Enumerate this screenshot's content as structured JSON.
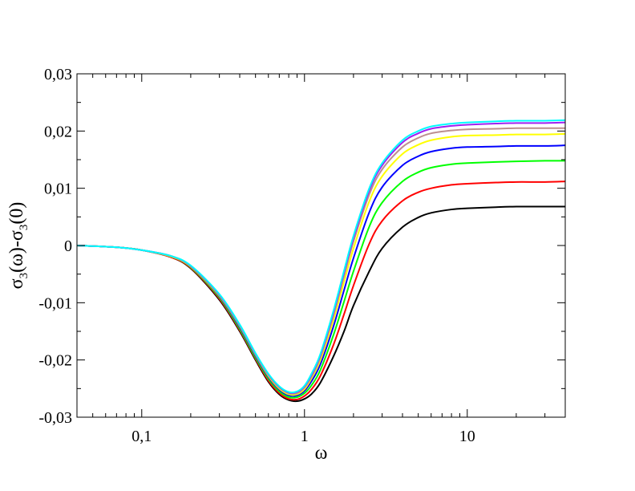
{
  "chart_data": {
    "type": "line",
    "xscale": "log",
    "xlim": [
      0.04,
      40
    ],
    "ylim": [
      -0.03,
      0.03
    ],
    "grid": false,
    "legend": "none",
    "xlabel": "ω",
    "ylabel": {
      "sigma": "σ",
      "sub": "3",
      "omega_arg": "(ω)-",
      "zero_arg": "(0)"
    },
    "x_ticks": [
      {
        "value": 0.1,
        "label": "0,1"
      },
      {
        "value": 1,
        "label": "1"
      },
      {
        "value": 10,
        "label": "10"
      }
    ],
    "y_ticks": [
      {
        "value": -0.03,
        "label": "-0,03"
      },
      {
        "value": -0.02,
        "label": "-0,02"
      },
      {
        "value": -0.01,
        "label": "-0,01"
      },
      {
        "value": 0,
        "label": "0"
      },
      {
        "value": 0.01,
        "label": "0,01"
      },
      {
        "value": 0.02,
        "label": "0,02"
      },
      {
        "value": 0.03,
        "label": "0,03"
      }
    ],
    "series": [
      {
        "color": "#000000",
        "x": [
          0.04,
          0.07,
          0.1,
          0.15,
          0.2,
          0.3,
          0.4,
          0.5,
          0.6,
          0.7,
          0.8,
          0.9,
          1.0,
          1.1,
          1.25,
          1.5,
          1.75,
          2,
          2.5,
          3,
          4,
          5,
          6,
          8,
          10,
          15,
          20,
          30,
          40
        ],
        "y": [
          0,
          -0.0003,
          -0.0008,
          -0.002,
          -0.004,
          -0.0095,
          -0.015,
          -0.02,
          -0.0238,
          -0.026,
          -0.027,
          -0.0272,
          -0.0268,
          -0.026,
          -0.024,
          -0.0195,
          -0.015,
          -0.0105,
          -0.0045,
          -0.0005,
          0.0032,
          0.0049,
          0.0057,
          0.0063,
          0.0065,
          0.0067,
          0.0068,
          0.0068,
          0.0068
        ]
      },
      {
        "color": "#ff0000",
        "x": [
          0.04,
          0.07,
          0.1,
          0.15,
          0.2,
          0.3,
          0.4,
          0.5,
          0.6,
          0.7,
          0.8,
          0.9,
          1.0,
          1.1,
          1.25,
          1.5,
          1.75,
          2,
          2.5,
          3,
          4,
          5,
          6,
          8,
          10,
          15,
          20,
          30,
          40
        ],
        "y": [
          0,
          -0.0003,
          -0.0008,
          -0.002,
          -0.0039,
          -0.0093,
          -0.0148,
          -0.0198,
          -0.0236,
          -0.0258,
          -0.0268,
          -0.0269,
          -0.0263,
          -0.0252,
          -0.0228,
          -0.0175,
          -0.012,
          -0.007,
          0.0003,
          0.0043,
          0.0078,
          0.0093,
          0.01,
          0.0106,
          0.0108,
          0.011,
          0.0111,
          0.0111,
          0.0112
        ]
      },
      {
        "color": "#00ff00",
        "x": [
          0.04,
          0.07,
          0.1,
          0.15,
          0.2,
          0.3,
          0.4,
          0.5,
          0.6,
          0.7,
          0.8,
          0.9,
          1.0,
          1.1,
          1.25,
          1.5,
          1.75,
          2,
          2.5,
          3,
          4,
          5,
          6,
          8,
          10,
          15,
          20,
          30,
          40
        ],
        "y": [
          0,
          -0.0003,
          -0.0008,
          -0.0019,
          -0.0038,
          -0.0091,
          -0.0146,
          -0.0196,
          -0.0233,
          -0.0255,
          -0.0265,
          -0.0265,
          -0.0258,
          -0.0245,
          -0.0218,
          -0.0158,
          -0.0098,
          -0.0045,
          0.0033,
          0.0075,
          0.0112,
          0.0128,
          0.0136,
          0.0142,
          0.0144,
          0.0146,
          0.0147,
          0.0148,
          0.0148
        ]
      },
      {
        "color": "#0000ff",
        "x": [
          0.04,
          0.07,
          0.1,
          0.15,
          0.2,
          0.3,
          0.4,
          0.5,
          0.6,
          0.7,
          0.8,
          0.9,
          1.0,
          1.1,
          1.25,
          1.5,
          1.75,
          2,
          2.5,
          3,
          4,
          5,
          6,
          8,
          10,
          15,
          20,
          30,
          40
        ],
        "y": [
          0,
          -0.0003,
          -0.0008,
          -0.0019,
          -0.0037,
          -0.0089,
          -0.0143,
          -0.0193,
          -0.023,
          -0.0252,
          -0.0262,
          -0.0262,
          -0.0254,
          -0.0238,
          -0.0208,
          -0.0143,
          -0.0078,
          -0.0022,
          0.0058,
          0.0102,
          0.014,
          0.0156,
          0.0164,
          0.017,
          0.0172,
          0.0173,
          0.0174,
          0.0174,
          0.0175
        ]
      },
      {
        "color": "#ffff00",
        "x": [
          0.04,
          0.07,
          0.1,
          0.15,
          0.2,
          0.3,
          0.4,
          0.5,
          0.6,
          0.7,
          0.8,
          0.9,
          1.0,
          1.1,
          1.25,
          1.5,
          1.75,
          2,
          2.5,
          3,
          4,
          5,
          6,
          8,
          10,
          15,
          20,
          30,
          40
        ],
        "y": [
          0,
          -0.0003,
          -0.0008,
          -0.0019,
          -0.0037,
          -0.0088,
          -0.0141,
          -0.0191,
          -0.0228,
          -0.025,
          -0.026,
          -0.026,
          -0.0251,
          -0.0233,
          -0.0201,
          -0.0132,
          -0.0063,
          -0.0005,
          0.0077,
          0.0121,
          0.016,
          0.0176,
          0.0184,
          0.019,
          0.0192,
          0.0193,
          0.0194,
          0.0194,
          0.0195
        ]
      },
      {
        "color": "#bc8f8f",
        "x": [
          0.04,
          0.07,
          0.1,
          0.15,
          0.2,
          0.3,
          0.4,
          0.5,
          0.6,
          0.7,
          0.8,
          0.9,
          1.0,
          1.1,
          1.25,
          1.5,
          1.75,
          2,
          2.5,
          3,
          4,
          5,
          6,
          8,
          10,
          15,
          20,
          30,
          40
        ],
        "y": [
          0,
          -0.0003,
          -0.0008,
          -0.0018,
          -0.0036,
          -0.0087,
          -0.014,
          -0.019,
          -0.0226,
          -0.0248,
          -0.0258,
          -0.0258,
          -0.0248,
          -0.023,
          -0.0196,
          -0.0124,
          -0.0053,
          0.0007,
          0.0089,
          0.0133,
          0.0172,
          0.0188,
          0.0196,
          0.0201,
          0.0203,
          0.0204,
          0.0205,
          0.0205,
          0.0205
        ]
      },
      {
        "color": "#a020f0",
        "x": [
          0.04,
          0.07,
          0.1,
          0.15,
          0.2,
          0.3,
          0.4,
          0.5,
          0.6,
          0.7,
          0.8,
          0.9,
          1.0,
          1.1,
          1.25,
          1.5,
          1.75,
          2,
          2.5,
          3,
          4,
          5,
          6,
          8,
          10,
          15,
          20,
          30,
          40
        ],
        "y": [
          0,
          -0.0003,
          -0.0008,
          -0.0018,
          -0.0036,
          -0.0086,
          -0.0139,
          -0.0189,
          -0.0225,
          -0.0247,
          -0.0257,
          -0.0256,
          -0.0246,
          -0.0227,
          -0.0192,
          -0.0119,
          -0.0047,
          0.0013,
          0.0096,
          0.014,
          0.018,
          0.0196,
          0.0204,
          0.0209,
          0.0211,
          0.0213,
          0.0214,
          0.0214,
          0.0215
        ]
      },
      {
        "color": "#00ffff",
        "x": [
          0.04,
          0.07,
          0.1,
          0.15,
          0.2,
          0.3,
          0.4,
          0.5,
          0.6,
          0.7,
          0.8,
          0.9,
          1.0,
          1.1,
          1.25,
          1.5,
          1.75,
          2,
          2.5,
          3,
          4,
          5,
          6,
          8,
          10,
          15,
          20,
          30,
          40
        ],
        "y": [
          0,
          -0.0003,
          -0.0008,
          -0.0018,
          -0.0035,
          -0.0085,
          -0.0138,
          -0.0188,
          -0.0224,
          -0.0246,
          -0.0256,
          -0.0255,
          -0.0245,
          -0.0225,
          -0.019,
          -0.0116,
          -0.0044,
          0.0017,
          0.01,
          0.0144,
          0.0184,
          0.02,
          0.0208,
          0.0213,
          0.0215,
          0.0217,
          0.0218,
          0.0218,
          0.0219
        ]
      }
    ]
  }
}
